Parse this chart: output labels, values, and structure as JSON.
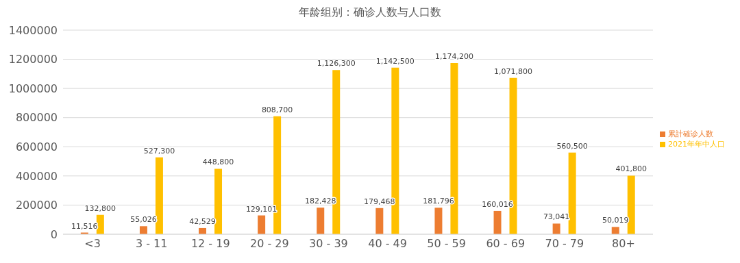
{
  "chart_data": {
    "type": "bar",
    "title": "年龄组别：确诊人数与人口数",
    "categories": [
      "<3",
      "3 - 11",
      "12 - 19",
      "20 - 29",
      "30 - 39",
      "40 - 49",
      "50 - 59",
      "60 - 69",
      "70 - 79",
      "80+"
    ],
    "series": [
      {
        "name": "累計確诊人数",
        "color": "#ed7d31",
        "values": [
          11516,
          55026,
          42529,
          129101,
          182428,
          179468,
          181796,
          160016,
          73041,
          50019
        ],
        "value_labels": [
          "11,516",
          "55,026",
          "42,529",
          "129,101",
          "182,428",
          "179,468",
          "181,796",
          "160,016",
          "73,041",
          "50,019"
        ]
      },
      {
        "name": "2021年年中人口",
        "color": "#ffc000",
        "values": [
          132800,
          527300,
          448800,
          808700,
          1126300,
          1142500,
          1174200,
          1071800,
          560500,
          401800
        ],
        "value_labels": [
          "132,800",
          "527,300",
          "448,800",
          "808,700",
          "1,126,300",
          "1,142,500",
          "1,174,200",
          "1,071,800",
          "560,500",
          "401,800"
        ]
      }
    ],
    "ylim": [
      0,
      1400000
    ],
    "yticks": [
      0,
      200000,
      400000,
      600000,
      800000,
      1000000,
      1200000,
      1400000
    ],
    "grid": "y",
    "legend": "right"
  }
}
